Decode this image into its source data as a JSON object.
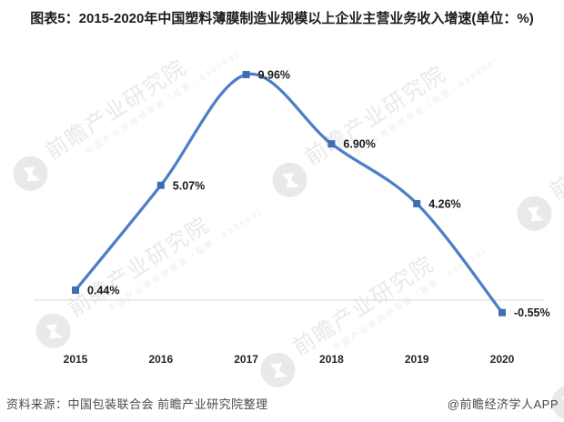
{
  "title": "图表5：2015-2020年中国塑料薄膜制造业规模以上企业主营业务收入增速(单位：%)",
  "chart_data": {
    "type": "line",
    "smooth": true,
    "title": "2015-2020年中国塑料薄膜制造业规模以上企业主营业务收入增速",
    "unit": "%",
    "categories": [
      "2015",
      "2016",
      "2017",
      "2018",
      "2019",
      "2020"
    ],
    "series": [
      {
        "name": "规模以上企业主营业务收入增速",
        "values": [
          0.44,
          5.07,
          9.96,
          6.9,
          4.26,
          -0.55
        ]
      }
    ],
    "point_labels": [
      "0.44%",
      "5.07%",
      "9.96%",
      "6.90%",
      "4.26%",
      "-0.55%"
    ],
    "ylim": [
      -2.2,
      11.3
    ],
    "grid": "zero-baseline-only",
    "legend": "none",
    "colors": {
      "line": "#4d7ec6",
      "marker": "#3e6cb5",
      "zero_line": "#d9d9d9",
      "label_text": "#1a1a1a"
    }
  },
  "footer": {
    "source": "资料来源：中国包装联合会 前瞻产业研究院整理",
    "credit": "@前瞻经济学人APP"
  },
  "watermark": {
    "logo_icon": "qianzhan-forward-figure-icon",
    "big": "前瞻产业研究院",
    "small": "中国产业咨询领导者（股票：839599）"
  }
}
